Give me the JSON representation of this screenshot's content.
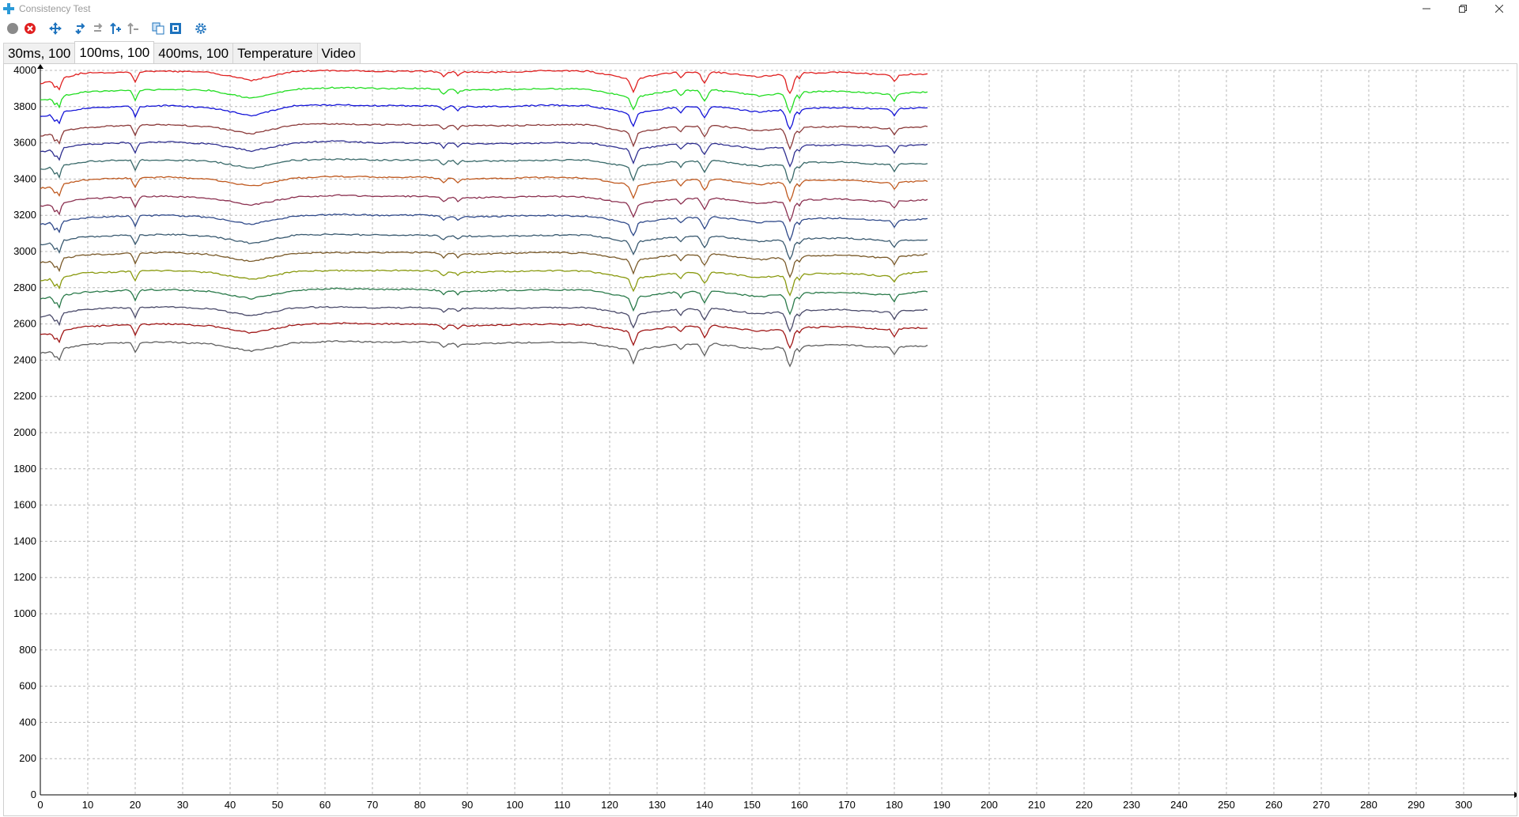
{
  "window": {
    "title": "Consistency Test",
    "controls": [
      "minimize",
      "restore",
      "close"
    ]
  },
  "toolbar": {
    "buttons": [
      {
        "name": "record-button",
        "icon": "gray-circle-icon"
      },
      {
        "name": "stop-button",
        "icon": "red-x-circle-icon"
      },
      {
        "name": "move-button",
        "icon": "move-arrows-icon"
      },
      {
        "name": "step-forward-button",
        "icon": "turn-arrow-icon"
      },
      {
        "name": "step-forward-disabled-button",
        "icon": "turn-arrow-gray-icon"
      },
      {
        "name": "step-up-button",
        "icon": "up-arrow-icon"
      },
      {
        "name": "step-up-disabled-button",
        "icon": "up-arrow-gray-icon"
      },
      {
        "name": "copy-button",
        "icon": "copy-icon"
      },
      {
        "name": "export-button",
        "icon": "export-icon"
      },
      {
        "name": "settings-button",
        "icon": "gear-icon"
      }
    ],
    "colors": {
      "accent": "#1e73be",
      "stop": "#e02020",
      "record": "#8a8a8a"
    }
  },
  "tabs": [
    {
      "label": "30ms, 100",
      "active": false
    },
    {
      "label": "100ms, 100",
      "active": true
    },
    {
      "label": "400ms, 100",
      "active": false
    },
    {
      "label": "Temperature",
      "active": false
    },
    {
      "label": "Video",
      "active": false
    }
  ],
  "chart_data": {
    "type": "line",
    "title": "",
    "xlabel": "",
    "ylabel": "",
    "xlim": [
      0,
      310
    ],
    "ylim": [
      0,
      4000
    ],
    "xticks": [
      0,
      10,
      20,
      30,
      40,
      50,
      60,
      70,
      80,
      90,
      100,
      110,
      120,
      130,
      140,
      150,
      160,
      170,
      180,
      190,
      200,
      210,
      220,
      230,
      240,
      250,
      260,
      270,
      280,
      290,
      300
    ],
    "yticks": [
      0,
      200,
      400,
      600,
      800,
      1000,
      1200,
      1400,
      1600,
      1800,
      2000,
      2200,
      2400,
      2600,
      2800,
      3000,
      3200,
      3400,
      3600,
      3800,
      4000
    ],
    "grid": true,
    "legend": "none",
    "x_range_of_data": [
      0,
      187
    ],
    "dip_positions": [
      3,
      4,
      20,
      85,
      88,
      125,
      135,
      140,
      158,
      160,
      180
    ],
    "series": [
      {
        "color": "#e02020",
        "values": [
          3930,
          3985,
          3990,
          3995,
          3990,
          3945,
          3995,
          4000,
          3995,
          3995,
          3990,
          3990,
          3998,
          3995,
          3950,
          3990,
          3990,
          3965,
          3985,
          3990,
          3975,
          3980
        ]
      },
      {
        "color": "#22dd22",
        "values": [
          3835,
          3880,
          3890,
          3895,
          3890,
          3845,
          3895,
          3905,
          3900,
          3900,
          3890,
          3895,
          3900,
          3895,
          3850,
          3890,
          3890,
          3860,
          3880,
          3885,
          3870,
          3880
        ]
      },
      {
        "color": "#1414d8",
        "values": [
          3745,
          3790,
          3800,
          3805,
          3795,
          3750,
          3805,
          3810,
          3805,
          3805,
          3800,
          3800,
          3808,
          3805,
          3760,
          3795,
          3800,
          3770,
          3790,
          3795,
          3785,
          3795
        ]
      },
      {
        "color": "#8b3a3a",
        "values": [
          3640,
          3685,
          3695,
          3700,
          3690,
          3650,
          3700,
          3705,
          3700,
          3700,
          3695,
          3695,
          3700,
          3700,
          3655,
          3690,
          3695,
          3665,
          3685,
          3690,
          3680,
          3690
        ]
      },
      {
        "color": "#303090",
        "values": [
          3550,
          3590,
          3600,
          3605,
          3595,
          3555,
          3600,
          3610,
          3600,
          3600,
          3595,
          3595,
          3600,
          3600,
          3560,
          3595,
          3595,
          3565,
          3585,
          3590,
          3580,
          3590
        ]
      },
      {
        "color": "#3a6a6a",
        "values": [
          3455,
          3495,
          3505,
          3505,
          3500,
          3460,
          3505,
          3510,
          3505,
          3505,
          3500,
          3500,
          3505,
          3505,
          3465,
          3495,
          3500,
          3470,
          3490,
          3495,
          3480,
          3485
        ]
      },
      {
        "color": "#c05a20",
        "values": [
          3350,
          3395,
          3405,
          3410,
          3400,
          3360,
          3405,
          3415,
          3410,
          3410,
          3400,
          3405,
          3410,
          3405,
          3365,
          3395,
          3400,
          3370,
          3390,
          3395,
          3380,
          3390
        ]
      },
      {
        "color": "#8b3050",
        "values": [
          3250,
          3290,
          3300,
          3305,
          3295,
          3255,
          3300,
          3310,
          3305,
          3305,
          3295,
          3300,
          3305,
          3300,
          3260,
          3290,
          3295,
          3265,
          3285,
          3290,
          3275,
          3285
        ]
      },
      {
        "color": "#304a8a",
        "values": [
          3150,
          3185,
          3195,
          3200,
          3190,
          3150,
          3195,
          3205,
          3200,
          3200,
          3190,
          3195,
          3200,
          3195,
          3155,
          3185,
          3190,
          3160,
          3180,
          3185,
          3170,
          3180
        ]
      },
      {
        "color": "#3a5a70",
        "values": [
          3040,
          3080,
          3090,
          3095,
          3085,
          3045,
          3090,
          3095,
          3090,
          3090,
          3085,
          3085,
          3090,
          3090,
          3050,
          3080,
          3085,
          3055,
          3070,
          3075,
          3060,
          3065
        ]
      },
      {
        "color": "#7a5a2a",
        "values": [
          2940,
          2980,
          2990,
          2995,
          2985,
          2945,
          2990,
          2995,
          2995,
          2995,
          2985,
          2990,
          2995,
          2990,
          2950,
          2980,
          2985,
          2955,
          2975,
          2980,
          2965,
          2985
        ]
      },
      {
        "color": "#8a9a10",
        "values": [
          2840,
          2880,
          2890,
          2895,
          2885,
          2845,
          2890,
          2895,
          2895,
          2895,
          2885,
          2890,
          2895,
          2890,
          2850,
          2880,
          2885,
          2855,
          2875,
          2880,
          2865,
          2890
        ]
      },
      {
        "color": "#2a7a4a",
        "values": [
          2740,
          2775,
          2785,
          2790,
          2780,
          2740,
          2785,
          2795,
          2790,
          2790,
          2780,
          2785,
          2790,
          2785,
          2745,
          2775,
          2780,
          2750,
          2770,
          2775,
          2760,
          2780
        ]
      },
      {
        "color": "#4a4a6a",
        "values": [
          2640,
          2680,
          2690,
          2695,
          2685,
          2645,
          2690,
          2695,
          2690,
          2690,
          2685,
          2685,
          2690,
          2690,
          2650,
          2680,
          2685,
          2655,
          2675,
          2680,
          2665,
          2680
        ]
      },
      {
        "color": "#a01818",
        "values": [
          2540,
          2585,
          2595,
          2600,
          2590,
          2550,
          2595,
          2605,
          2600,
          2600,
          2590,
          2595,
          2600,
          2595,
          2555,
          2585,
          2590,
          2560,
          2580,
          2585,
          2570,
          2580
        ]
      },
      {
        "color": "#606060",
        "values": [
          2440,
          2485,
          2495,
          2500,
          2490,
          2450,
          2495,
          2505,
          2500,
          2500,
          2490,
          2495,
          2500,
          2495,
          2455,
          2485,
          2490,
          2460,
          2480,
          2485,
          2470,
          2480
        ]
      }
    ]
  }
}
